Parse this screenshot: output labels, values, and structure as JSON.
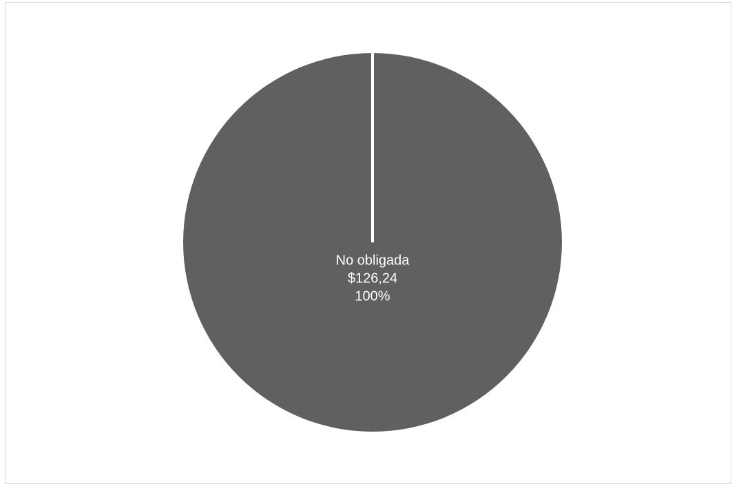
{
  "chart_data": {
    "type": "pie",
    "categories": [
      "No obligada"
    ],
    "values": [
      126.24
    ],
    "value_labels": [
      "$126,24"
    ],
    "percent_labels": [
      "100%"
    ],
    "colors": [
      "#606060"
    ],
    "slice_separator_color": "#ffffff",
    "title": "",
    "legend": "none",
    "start_angle": "top (12 o'clock)"
  }
}
